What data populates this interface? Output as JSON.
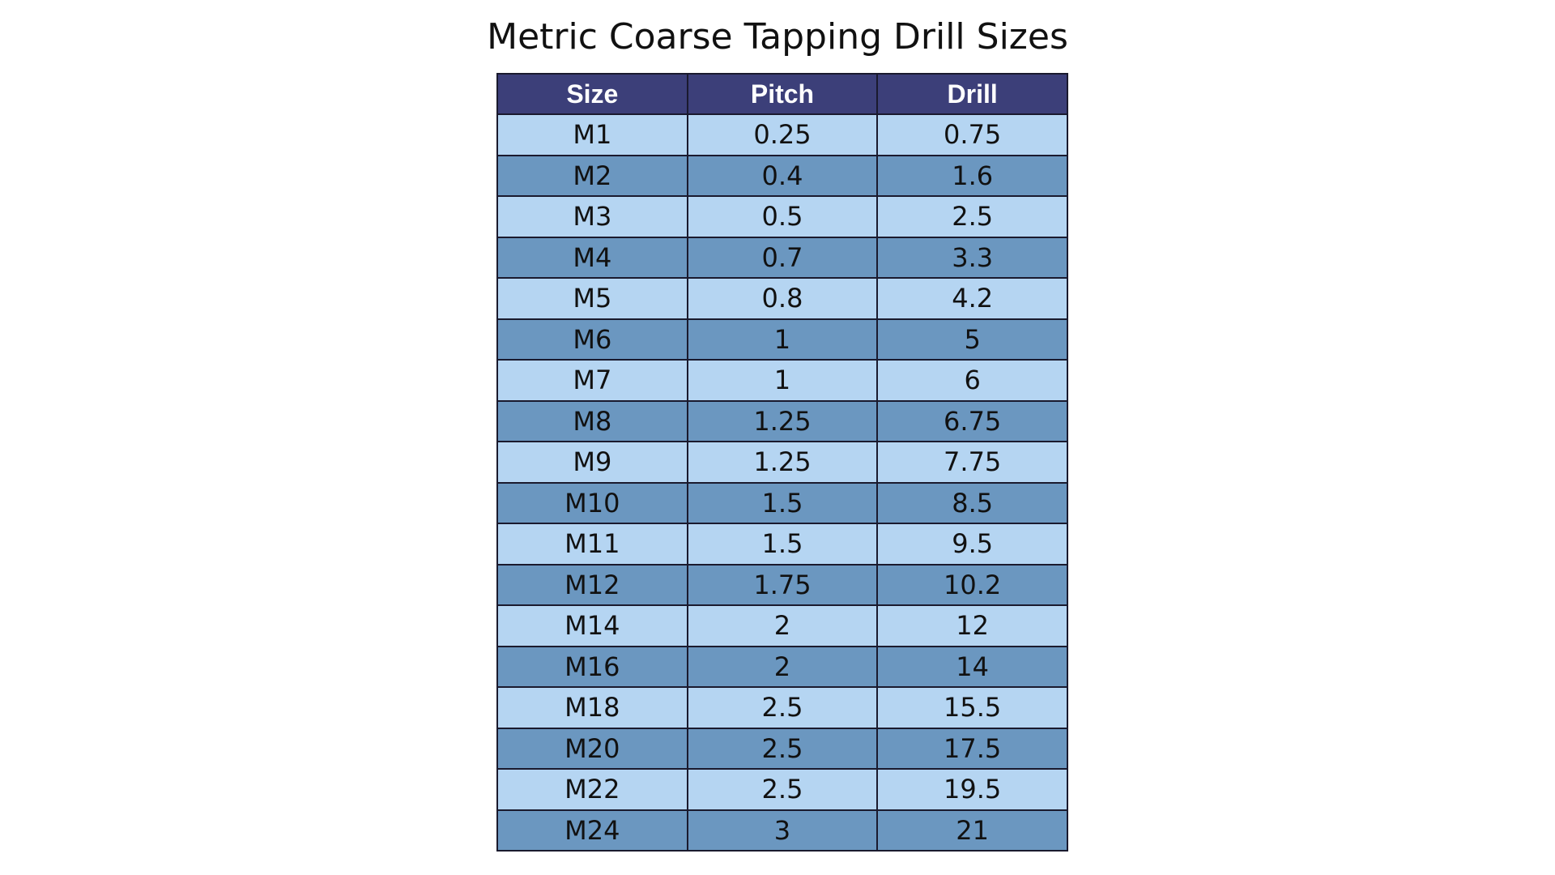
{
  "title": "Metric Coarse Tapping Drill Sizes",
  "colors": {
    "header_bg": "#3c3f79",
    "row_light": "#b5d5f2",
    "row_dark": "#6b97c0",
    "border": "#1a1a2e"
  },
  "table": {
    "headers": [
      "Size",
      "Pitch",
      "Drill"
    ],
    "rows": [
      [
        "M1",
        "0.25",
        "0.75"
      ],
      [
        "M2",
        "0.4",
        "1.6"
      ],
      [
        "M3",
        "0.5",
        "2.5"
      ],
      [
        "M4",
        "0.7",
        "3.3"
      ],
      [
        "M5",
        "0.8",
        "4.2"
      ],
      [
        "M6",
        "1",
        "5"
      ],
      [
        "M7",
        "1",
        "6"
      ],
      [
        "M8",
        "1.25",
        "6.75"
      ],
      [
        "M9",
        "1.25",
        "7.75"
      ],
      [
        "M10",
        "1.5",
        "8.5"
      ],
      [
        "M11",
        "1.5",
        "9.5"
      ],
      [
        "M12",
        "1.75",
        "10.2"
      ],
      [
        "M14",
        "2",
        "12"
      ],
      [
        "M16",
        "2",
        "14"
      ],
      [
        "M18",
        "2.5",
        "15.5"
      ],
      [
        "M20",
        "2.5",
        "17.5"
      ],
      [
        "M22",
        "2.5",
        "19.5"
      ],
      [
        "M24",
        "3",
        "21"
      ]
    ]
  }
}
